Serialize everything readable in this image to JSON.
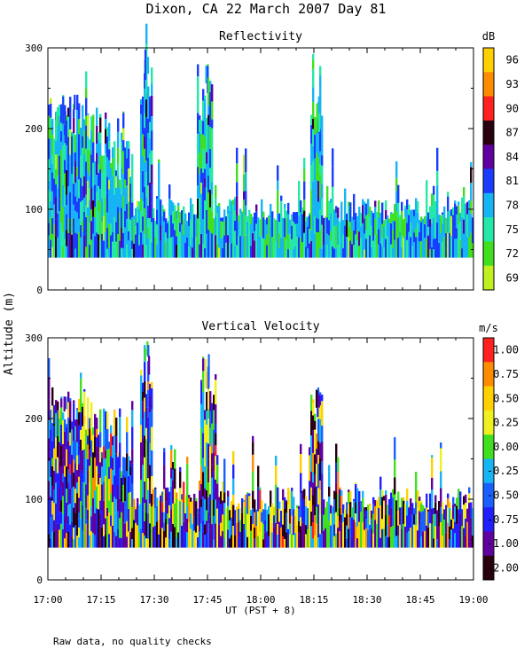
{
  "chart_data": {
    "type": "heatmap",
    "title": "Dixon, CA 22 March 2007  Day  81",
    "xlabel": "UT  (PST + 8)",
    "ylabel": "Altitude (m)",
    "footnote": "Raw data, no quality checks",
    "x_range_hours": [
      17.0,
      19.0
    ],
    "x_ticks": [
      "17:00",
      "17:15",
      "17:30",
      "17:45",
      "18:00",
      "18:15",
      "18:30",
      "18:45",
      "19:00"
    ],
    "ylim": [
      0,
      300
    ],
    "y_ticks": [
      "0",
      "100",
      "200",
      "300"
    ],
    "panels": [
      {
        "name": "Reflectivity",
        "units": "dB",
        "colorbar_labels": [
          "96",
          "93",
          "90",
          "87",
          "84",
          "81",
          "78",
          "75",
          "72",
          "69"
        ],
        "colorbar_colors": [
          "#ffd000",
          "#ff8c00",
          "#ff2020",
          "#280010",
          "#6000a0",
          "#1a3cff",
          "#17b4f5",
          "#25e8a8",
          "#40e020",
          "#c0f020"
        ],
        "echo_base_m": 40,
        "dense_top_m": 100,
        "features": [
          {
            "start": "17:00",
            "end": "17:10",
            "top_m": 245
          },
          {
            "start": "17:27",
            "end": "17:28",
            "top_m": 300
          },
          {
            "start": "17:43",
            "end": "17:45",
            "top_m": 280
          },
          {
            "start": "18:15",
            "end": "18:16",
            "top_m": 240
          }
        ]
      },
      {
        "name": "Vertical Velocity",
        "units": "m/s",
        "colorbar_labels": [
          "1.00",
          "0.75",
          "0.50",
          "0.25",
          "0.00",
          "-0.25",
          "-0.50",
          "-0.75",
          "-1.00",
          "-2.00"
        ],
        "colorbar_colors": [
          "#ff2020",
          "#ff8c00",
          "#ffd000",
          "#f0f020",
          "#40e020",
          "#17b4f5",
          "#1a60ff",
          "#2020ff",
          "#6000a0",
          "#280010"
        ],
        "echo_base_m": 40,
        "dense_top_m": 100,
        "features": [
          {
            "start": "17:00",
            "end": "17:10",
            "top_m": 240
          },
          {
            "start": "17:27",
            "end": "17:28",
            "top_m": 300
          },
          {
            "start": "17:44",
            "end": "17:46",
            "top_m": 280
          },
          {
            "start": "18:15",
            "end": "18:16",
            "top_m": 240
          }
        ]
      }
    ]
  }
}
